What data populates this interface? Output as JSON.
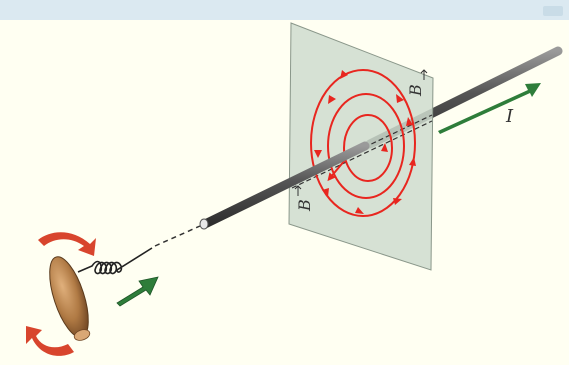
{
  "labels": {
    "field_upper": "B",
    "field_lower": "B",
    "current": "I"
  },
  "colors": {
    "background": "#fffff2",
    "top_strip": "#dbe9f1",
    "plane": "#cfdccf",
    "wire": "#5a5a5a",
    "field_lines": "#e8261f",
    "current_arrow": "#2e7d3a",
    "rotation_arrows": "#d8452d",
    "handle": "#b07a44"
  },
  "icons": [
    "corkscrew",
    "rotation-arrow",
    "push-arrow",
    "field-line-arrow"
  ]
}
